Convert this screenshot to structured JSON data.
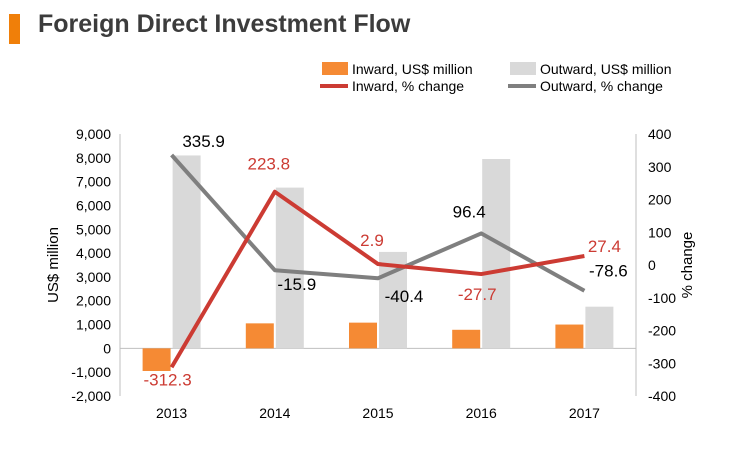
{
  "header": {
    "title": "Foreign Direct Investment Flow"
  },
  "colors": {
    "inward_bar": "#f58a34",
    "outward_bar": "#d9d9d9",
    "inward_line": "#cc3b33",
    "outward_line": "#7f7f7f",
    "accent": "#f07f09"
  },
  "chart_data": {
    "type": "bar",
    "title": "Foreign Direct Investment Flow",
    "categories": [
      "2013",
      "2014",
      "2015",
      "2016",
      "2017"
    ],
    "ylabel": "US$ million",
    "y2label": "% change",
    "ylim": [
      -2000,
      9000
    ],
    "y_ticks": [
      "9,000",
      "8,000",
      "7,000",
      "6,000",
      "5,000",
      "4,000",
      "3,000",
      "2,000",
      "1,000",
      "0",
      "-1,000",
      "-2,000"
    ],
    "y2lim": [
      -400,
      400
    ],
    "y2_ticks": [
      "400",
      "300",
      "200",
      "100",
      "0",
      "-100",
      "-200",
      "-300",
      "-400"
    ],
    "legend_position": "top-right",
    "grid": false,
    "series": [
      {
        "name": "Inward, US$ million",
        "kind": "bar",
        "axis": "left",
        "values": [
          -950,
          1050,
          1080,
          780,
          1000
        ]
      },
      {
        "name": "Outward, US$ million",
        "kind": "bar",
        "axis": "left",
        "values": [
          8100,
          6750,
          4050,
          7950,
          1750
        ]
      },
      {
        "name": "Inward, % change",
        "kind": "line",
        "axis": "right",
        "values": [
          -312.3,
          223.8,
          2.9,
          -27.7,
          27.4
        ],
        "labels": [
          "-312.3",
          "223.8",
          "2.9",
          "-27.7",
          "27.4"
        ]
      },
      {
        "name": "Outward, % change",
        "kind": "line",
        "axis": "right",
        "values": [
          335.9,
          -15.9,
          -40.4,
          96.4,
          -78.6
        ],
        "labels": [
          "335.9",
          "-15.9",
          "-40.4",
          "96.4",
          "-78.6"
        ]
      }
    ]
  }
}
